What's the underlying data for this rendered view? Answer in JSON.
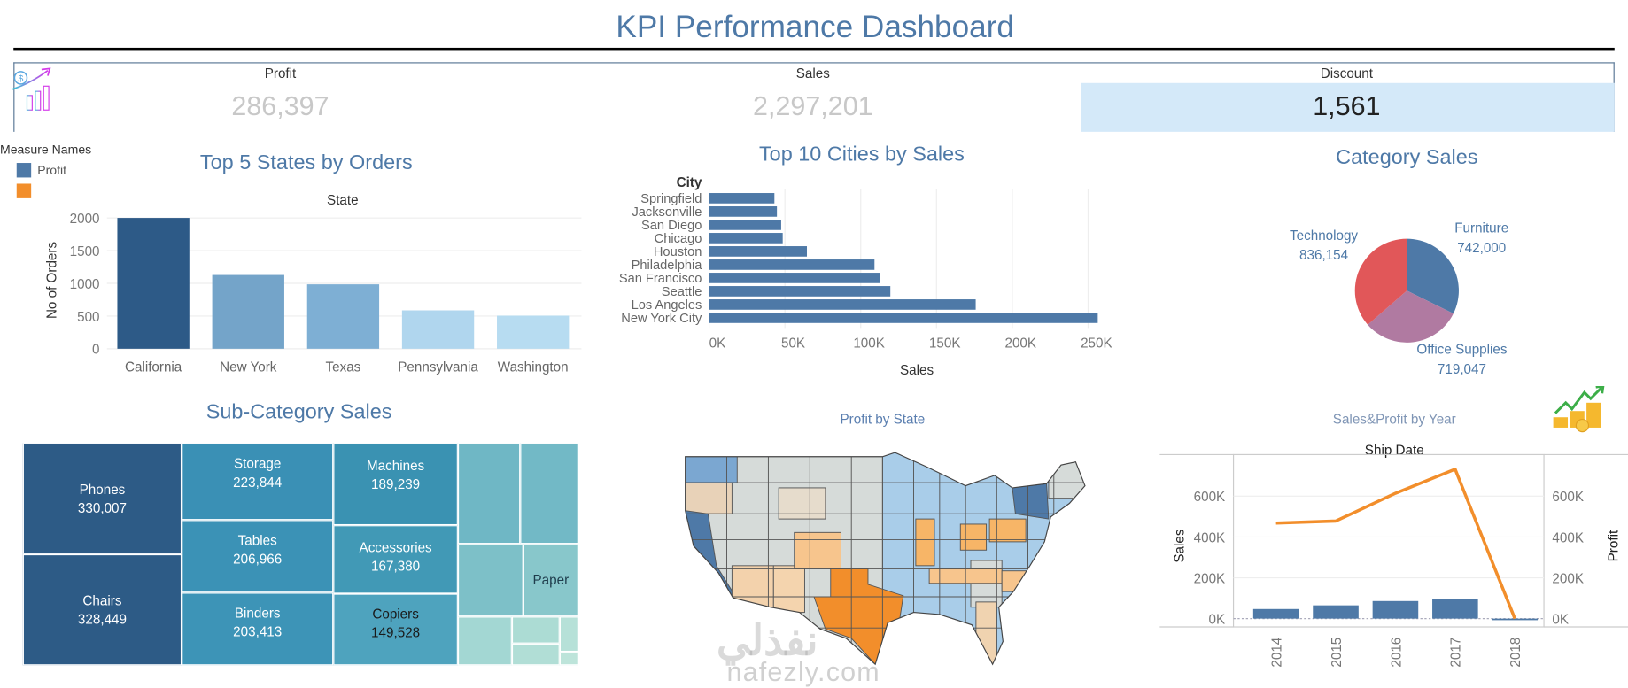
{
  "header": {
    "title": "KPI Performance Dashboard"
  },
  "kpis": [
    {
      "label": "Profit",
      "value": "286,397"
    },
    {
      "label": "Sales",
      "value": "2,297,201"
    },
    {
      "label": "Discount",
      "value": "1,561"
    }
  ],
  "legend": {
    "title": "Measure Names",
    "items": [
      {
        "label": "Profit",
        "color": "#4e79a7"
      },
      {
        "label": "",
        "color": "#f28e2b"
      }
    ]
  },
  "watermark": {
    "arabic": "نفذلي",
    "latin": "nafezly.com"
  },
  "chart_data": [
    {
      "type": "bar",
      "title": "Top 5 States by Orders",
      "xlabel": "State",
      "ylabel": "No of Orders",
      "categories": [
        "California",
        "New York",
        "Texas",
        "Pennsylvania",
        "Washington"
      ],
      "values": [
        2001,
        1128,
        985,
        587,
        506
      ],
      "colors": [
        "#2d5a87",
        "#74a4c9",
        "#7eafd4",
        "#b0d6ee",
        "#b7dcf1"
      ],
      "yticks": [
        "0",
        "500",
        "1000",
        "1500",
        "2000"
      ],
      "ylim": [
        0,
        2000
      ],
      "grid": true
    },
    {
      "type": "bar",
      "orientation": "horizontal",
      "title": "Top 10 Cities by Sales",
      "ylabel": "City",
      "xlabel": "Sales",
      "categories": [
        "Springfield",
        "Jacksonville",
        "San Diego",
        "Chicago",
        "Houston",
        "Philadelphia",
        "San Francisco",
        "Seattle",
        "Los Angeles",
        "New York City"
      ],
      "values": [
        43054,
        44713,
        47521,
        48540,
        64505,
        109077,
        112669,
        119541,
        175851,
        256368
      ],
      "xticks": [
        "0K",
        "50K",
        "100K",
        "150K",
        "200K",
        "250K"
      ],
      "xlim": [
        0,
        260000
      ],
      "color": "#4e79a7",
      "grid": true
    },
    {
      "type": "pie",
      "title": "Category Sales",
      "slices": [
        {
          "label": "Furniture",
          "value": 742000,
          "display": "742,000",
          "color": "#4e79a7"
        },
        {
          "label": "Office Supplies",
          "value": 719047,
          "display": "719,047",
          "color": "#b07aa1"
        },
        {
          "label": "Technology",
          "value": 836154,
          "display": "836,154",
          "color": "#e15759"
        }
      ]
    },
    {
      "type": "treemap",
      "title": "Sub-Category Sales",
      "items": [
        {
          "label": "Phones",
          "value": "330,007"
        },
        {
          "label": "Chairs",
          "value": "328,449"
        },
        {
          "label": "Storage",
          "value": "223,844"
        },
        {
          "label": "Tables",
          "value": "206,966"
        },
        {
          "label": "Binders",
          "value": "203,413"
        },
        {
          "label": "Machines",
          "value": "189,239"
        },
        {
          "label": "Accessories",
          "value": "167,380"
        },
        {
          "label": "Copiers",
          "value": "149,528"
        },
        {
          "label": "Paper",
          "value": ""
        }
      ]
    },
    {
      "type": "map",
      "title": "Profit by State",
      "colors": {
        "high": "#4e79a7",
        "mid_high": "#a9cde9",
        "neutral": "#d6dbd9",
        "mid_low": "#f7c58d",
        "low": "#f28e2b"
      }
    },
    {
      "type": "bar+line",
      "title": "Sales&Profit by Year",
      "xlabel": "Ship Date",
      "categories": [
        "2014",
        "2015",
        "2016",
        "2017",
        "2018"
      ],
      "series": [
        {
          "name": "Sales",
          "type": "bar",
          "axis": "left",
          "values": [
            47000,
            65000,
            86000,
            95000,
            -3000
          ],
          "color": "#4e79a7"
        },
        {
          "name": "Profit",
          "type": "line",
          "axis": "right",
          "values": [
            468000,
            478000,
            614000,
            732000,
            0
          ],
          "color": "#f28e2b"
        }
      ],
      "yticks_left": [
        "0K",
        "200K",
        "400K",
        "600K"
      ],
      "yticks_right": [
        "0K",
        "200K",
        "400K",
        "600K"
      ],
      "ylim": [
        0,
        750000
      ]
    }
  ]
}
